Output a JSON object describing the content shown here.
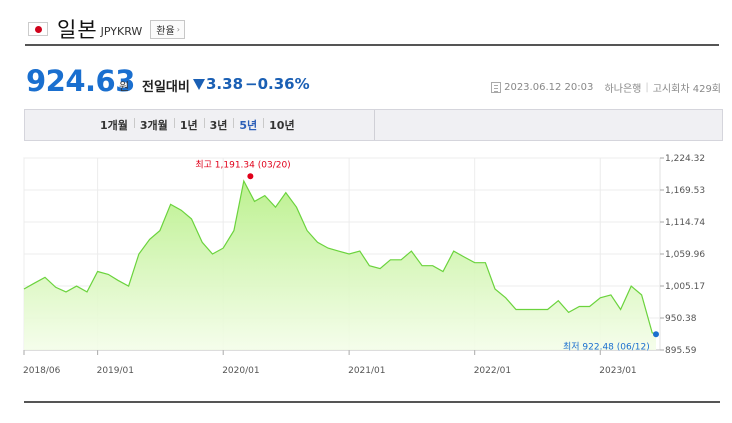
{
  "header": {
    "flag_icon": "japan-flag-icon",
    "title": "일본",
    "code": "JPYKRW",
    "exchange_button": "환율"
  },
  "quote": {
    "price": "924.63",
    "unit": "원",
    "compare_label": "전일대비",
    "change": "3.38",
    "change_pct": "−0.36%",
    "direction": "down",
    "timestamp": "2023.06.12 20:03",
    "bank": "하나은행",
    "notice": "고시회차 429회"
  },
  "tabs": [
    {
      "label": "1개월",
      "active": false
    },
    {
      "label": "3개월",
      "active": false
    },
    {
      "label": "1년",
      "active": false
    },
    {
      "label": "3년",
      "active": false
    },
    {
      "label": "5년",
      "active": true
    },
    {
      "label": "10년",
      "active": false
    }
  ],
  "colors": {
    "price_blue": "#1a6fcf",
    "down_blue": "#1a5fb4",
    "line_green": "#6bd33d",
    "fill_green_top": "#b9f08a",
    "high_red": "#e0001a",
    "low_blue": "#1a6fcf"
  },
  "chart_data": {
    "type": "area",
    "x_ticks": [
      "2018/06",
      "2019/01",
      "2020/01",
      "2021/01",
      "2022/01",
      "2023/01"
    ],
    "y_ticks": [
      "1,224.32",
      "1,169.53",
      "1,114.74",
      "1,059.96",
      "1,005.17",
      "950.38",
      "895.59"
    ],
    "ylim": [
      895.59,
      1224.32
    ],
    "grid": true,
    "high_label": "최고 1,191.34 (03/20)",
    "low_label": "최저 922.48 (06/12)",
    "high": {
      "x": "2020-03-20",
      "y": 1191.34
    },
    "low": {
      "x": "2023-06-12",
      "y": 922.48
    },
    "series": [
      {
        "x": [
          "2018-06",
          "2018-07",
          "2018-08",
          "2018-09",
          "2018-10",
          "2018-11",
          "2018-12",
          "2019-01",
          "2019-02",
          "2019-03",
          "2019-04",
          "2019-05",
          "2019-06",
          "2019-07",
          "2019-08",
          "2019-09",
          "2019-10",
          "2019-11",
          "2019-12",
          "2020-01",
          "2020-02",
          "2020-03",
          "2020-04",
          "2020-05",
          "2020-06",
          "2020-07",
          "2020-08",
          "2020-09",
          "2020-10",
          "2020-11",
          "2020-12",
          "2021-01",
          "2021-02",
          "2021-03",
          "2021-04",
          "2021-05",
          "2021-06",
          "2021-07",
          "2021-08",
          "2021-09",
          "2021-10",
          "2021-11",
          "2021-12",
          "2022-01",
          "2022-02",
          "2022-03",
          "2022-04",
          "2022-05",
          "2022-06",
          "2022-07",
          "2022-08",
          "2022-09",
          "2022-10",
          "2022-11",
          "2022-12",
          "2023-01",
          "2023-02",
          "2023-03",
          "2023-04",
          "2023-05",
          "2023-06"
        ],
        "values": [
          1000,
          1010,
          1020,
          1003,
          995,
          1005,
          995,
          1030,
          1025,
          1015,
          1005,
          1060,
          1085,
          1100,
          1145,
          1135,
          1120,
          1080,
          1060,
          1070,
          1100,
          1185,
          1150,
          1160,
          1140,
          1165,
          1140,
          1100,
          1080,
          1070,
          1065,
          1060,
          1065,
          1040,
          1035,
          1050,
          1050,
          1065,
          1040,
          1040,
          1030,
          1065,
          1055,
          1045,
          1045,
          1000,
          985,
          965,
          965,
          965,
          965,
          980,
          960,
          970,
          970,
          985,
          990,
          965,
          1005,
          990,
          925
        ]
      }
    ]
  }
}
